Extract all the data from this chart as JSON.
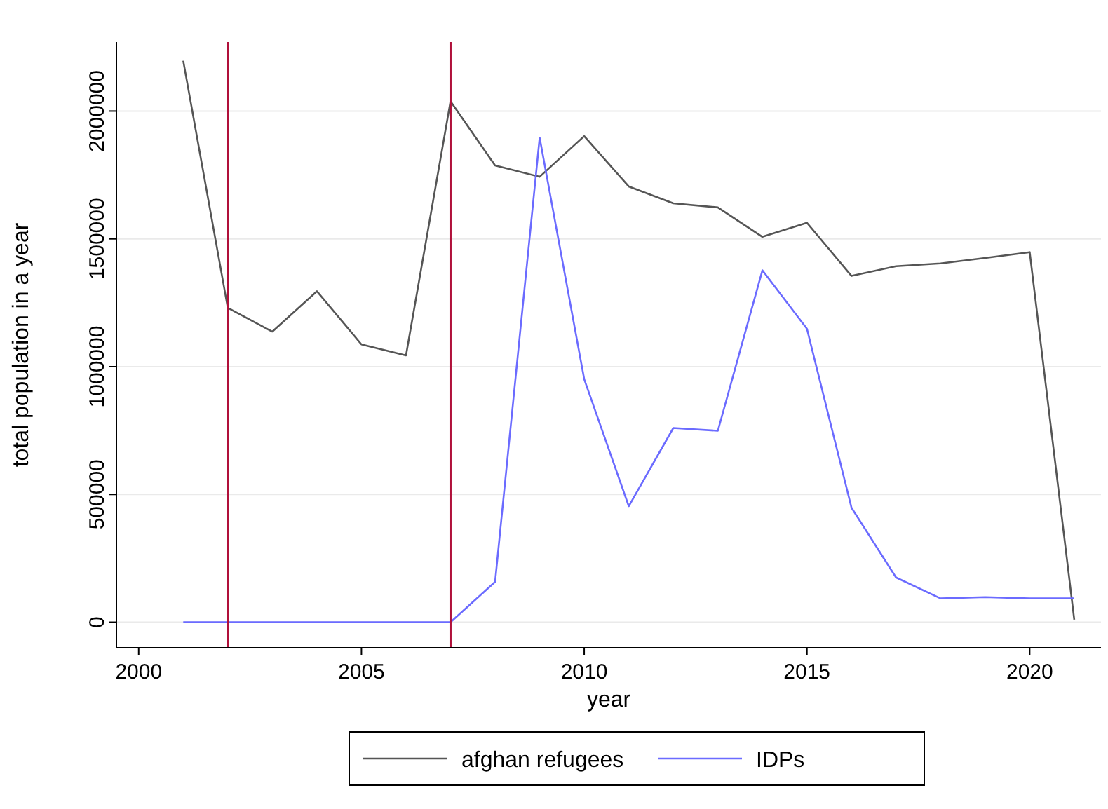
{
  "chart_data": {
    "type": "line",
    "xlabel": "year",
    "ylabel": "total population in a year",
    "x": [
      2001,
      2002,
      2003,
      2004,
      2005,
      2006,
      2007,
      2008,
      2009,
      2010,
      2011,
      2012,
      2013,
      2014,
      2015,
      2016,
      2017,
      2018,
      2019,
      2020,
      2021
    ],
    "series": [
      {
        "name": "afghan refugees",
        "color": "#555555",
        "values": [
          2197000,
          1230000,
          1137000,
          1295000,
          1087000,
          1044000,
          2038000,
          1787000,
          1743000,
          1902000,
          1705000,
          1639000,
          1623000,
          1508000,
          1563000,
          1355000,
          1393000,
          1404000,
          1425000,
          1448000,
          10000
        ]
      },
      {
        "name": "IDPs",
        "color": "#6b6bff",
        "values": [
          0,
          0,
          0,
          0,
          0,
          0,
          0,
          158000,
          1896000,
          951000,
          454000,
          760000,
          749000,
          1377000,
          1148000,
          448000,
          175000,
          93000,
          98000,
          93000,
          93000
        ]
      }
    ],
    "xlim": [
      1999.5,
      2021.6
    ],
    "xticks": [
      2000,
      2005,
      2010,
      2015,
      2020
    ],
    "ylim": [
      -100000,
      2270000
    ],
    "yticks": [
      0,
      500000,
      1000000,
      1500000,
      2000000
    ],
    "grid": "y",
    "legend": "bottom",
    "marker": "none",
    "line_style": "solid",
    "ref_lines": [
      {
        "axis": "x",
        "value": 2002,
        "color": "#b0103a"
      },
      {
        "axis": "x",
        "value": 2007,
        "color": "#b0103a"
      }
    ]
  }
}
